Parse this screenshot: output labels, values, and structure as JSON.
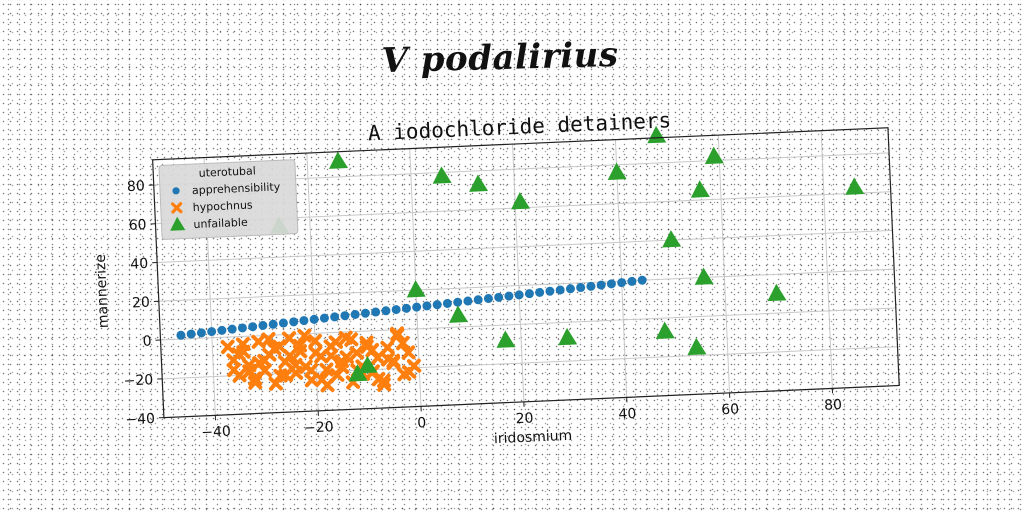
{
  "figure_title": "V podalirius",
  "chart_data": {
    "type": "scatter",
    "title": "A iodochloride detainers",
    "xlabel": "iridosmium",
    "ylabel": "mannerize",
    "xlim": [
      -50,
      93
    ],
    "ylim": [
      -40,
      93
    ],
    "xticks": [
      -40,
      -20,
      0,
      20,
      40,
      60,
      80
    ],
    "yticks": [
      -40,
      -20,
      0,
      20,
      40,
      60,
      80
    ],
    "grid": true,
    "legend": {
      "title": "uterotubal",
      "placement": "top-left",
      "entries": [
        "apprehensibility",
        "hypochnus",
        "unfailable"
      ]
    },
    "series": [
      {
        "name": "apprehensibility",
        "marker": "circle",
        "color": "#1f77b4",
        "x": [
          -46,
          -44,
          -42,
          -40,
          -38,
          -36,
          -34,
          -32,
          -30,
          -28,
          -26,
          -24,
          -22,
          -20,
          -18,
          -16,
          -14,
          -12,
          -10,
          -8,
          -6,
          -4,
          -2,
          0,
          2,
          4,
          6,
          8,
          10,
          12,
          14,
          16,
          18,
          20,
          22,
          24,
          26,
          28,
          30,
          32,
          34,
          36,
          38,
          40,
          42,
          44
        ],
        "y": [
          2.0,
          2.4,
          2.8,
          3.2,
          3.6,
          4.0,
          4.4,
          4.8,
          5.2,
          5.6,
          6.0,
          6.4,
          6.8,
          7.2,
          7.6,
          8.0,
          8.4,
          8.8,
          9.2,
          9.6,
          10.0,
          10.4,
          10.8,
          11.2,
          11.6,
          12.0,
          12.4,
          12.8,
          13.2,
          13.6,
          14.0,
          14.4,
          14.8,
          15.2,
          15.6,
          16.0,
          16.4,
          16.8,
          17.2,
          17.6,
          18.0,
          18.4,
          18.8,
          19.2,
          19.6,
          20.0
        ]
      },
      {
        "name": "hypochnus",
        "marker": "x",
        "color": "#ff7f0e",
        "x": [
          -37,
          -36,
          -35,
          -34,
          -33,
          -32,
          -31,
          -30,
          -29,
          -28,
          -27,
          -26,
          -25,
          -24,
          -23,
          -22,
          -21,
          -20,
          -19,
          -18,
          -17,
          -16,
          -15,
          -14,
          -13,
          -12,
          -11,
          -10,
          -9,
          -8,
          -7,
          -6,
          -5,
          -4,
          -3,
          -2,
          -1,
          -36,
          -34,
          -32,
          -30,
          -28,
          -26,
          -24,
          -22,
          -20,
          -18,
          -16,
          -14,
          -12,
          -10,
          -8,
          -6,
          -4,
          -2,
          -35,
          -33,
          -31,
          -29,
          -27,
          -25,
          -23,
          -21,
          -19,
          -17,
          -15,
          -13,
          -11,
          -9,
          -7,
          -5,
          -3
        ],
        "y": [
          -5,
          -12,
          -20,
          -8,
          -15,
          -22,
          -3,
          -18,
          -10,
          -25,
          -6,
          -14,
          -2,
          -20,
          -9,
          -17,
          -24,
          -4,
          -12,
          -19,
          -7,
          -22,
          -15,
          -3,
          -26,
          -11,
          -18,
          -6,
          -21,
          -14,
          -28,
          -9,
          -16,
          -2,
          -23,
          -12,
          -19,
          -17,
          -4,
          -24,
          -13,
          -7,
          -21,
          -16,
          -1,
          -10,
          -27,
          -5,
          -13,
          -20,
          -8,
          -25,
          -15,
          -3,
          -22,
          -9,
          -18,
          -14,
          -2,
          -21,
          -11,
          -6,
          -19,
          -24,
          -12,
          -18,
          -4,
          -22,
          -10,
          -26,
          -17,
          -7
        ]
      },
      {
        "name": "unfailable",
        "marker": "triangle",
        "color": "#2ca02c",
        "x": [
          -14,
          48,
          6,
          40,
          59,
          13,
          56,
          86,
          21,
          -26,
          50,
          56,
          0,
          8,
          70,
          17,
          29,
          48,
          54,
          -12,
          -10
        ],
        "y": [
          88,
          94,
          78,
          76,
          82,
          73,
          65,
          63,
          63,
          56,
          40,
          20,
          20,
          6,
          10,
          -8,
          -8,
          -7,
          -16,
          -22,
          -18
        ]
      }
    ]
  }
}
